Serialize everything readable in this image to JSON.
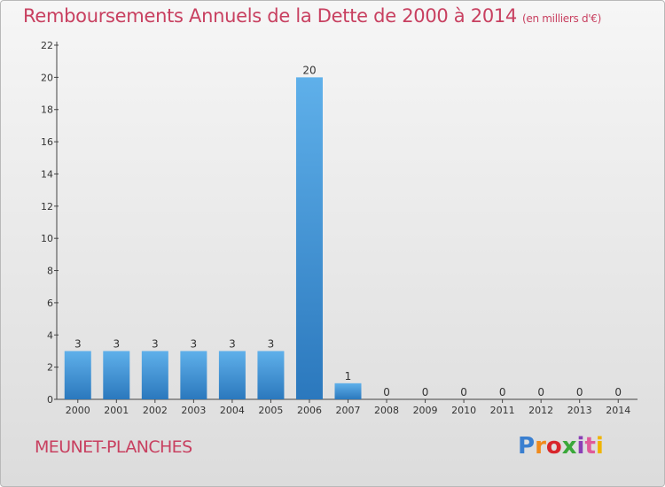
{
  "chart_data": {
    "type": "bar",
    "title": "Remboursements Annuels de la Dette de 2000 à 2014",
    "subtitle": "(en milliers d'€)",
    "categories": [
      "2000",
      "2001",
      "2002",
      "2003",
      "2004",
      "2005",
      "2006",
      "2007",
      "2008",
      "2009",
      "2010",
      "2011",
      "2012",
      "2013",
      "2014"
    ],
    "values": [
      3,
      3,
      3,
      3,
      3,
      3,
      20,
      1,
      0,
      0,
      0,
      0,
      0,
      0,
      0
    ],
    "data_labels": [
      "3",
      "3",
      "3",
      "3",
      "3",
      "3",
      "20",
      "1",
      "0",
      "0",
      "0",
      "0",
      "0",
      "0",
      "0"
    ],
    "y_ticks": [
      0,
      2,
      4,
      6,
      8,
      10,
      12,
      14,
      16,
      18,
      20,
      22
    ],
    "ylim": [
      0,
      22
    ],
    "xlabel": "",
    "ylabel": "",
    "grid": false,
    "bar_color": "#3f93d6"
  },
  "footer": {
    "commune": "MEUNET-PLANCHES",
    "logo_text": "Proxiti",
    "logo_colors": [
      "#3a7fd0",
      "#f08a1c",
      "#d8262b",
      "#3aa83a",
      "#8a3fb6",
      "#e05a9a",
      "#f0b400"
    ]
  }
}
